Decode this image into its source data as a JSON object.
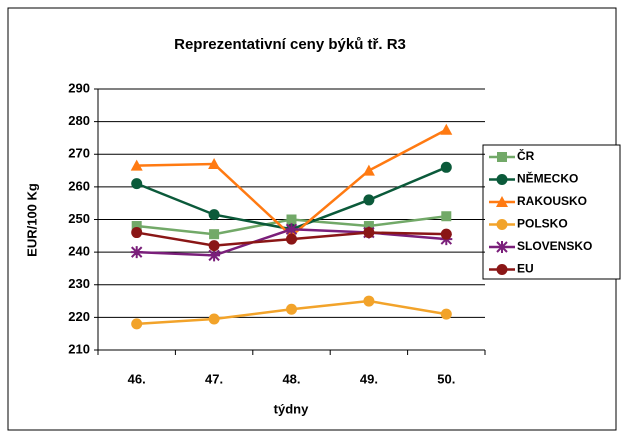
{
  "chart_data": {
    "type": "line",
    "title": "Reprezentativní ceny býků tř. R3",
    "x_label": "týdny",
    "y_label": "EUR/100 Kg",
    "categories": [
      "46.",
      "47.",
      "48.",
      "49.",
      "50."
    ],
    "series": [
      {
        "name": "ČR",
        "color": "#72a968",
        "marker": "square",
        "values": [
          248,
          245.5,
          250,
          248,
          251
        ]
      },
      {
        "name": "NĚMECKO",
        "color": "#0b5a3a",
        "marker": "circle",
        "values": [
          261,
          251.5,
          247,
          256,
          266
        ]
      },
      {
        "name": "RAKOUSKO",
        "color": "#ff7a12",
        "marker": "triangle",
        "values": [
          266.5,
          267,
          245,
          265,
          277.5
        ]
      },
      {
        "name": "POLSKO",
        "color": "#f2a32a",
        "marker": "circle",
        "values": [
          218,
          219.5,
          222.5,
          225,
          221
        ]
      },
      {
        "name": "SLOVENSKO",
        "color": "#7a1f7a",
        "marker": "star",
        "values": [
          240,
          239,
          247,
          246,
          244
        ]
      },
      {
        "name": "EU",
        "color": "#8a1616",
        "marker": "circle",
        "values": [
          246,
          242,
          244,
          246,
          245.5
        ]
      }
    ],
    "ylim": [
      210,
      290
    ],
    "yticks": [
      210,
      220,
      230,
      240,
      250,
      260,
      270,
      280,
      290
    ],
    "grid": true,
    "legend": "right"
  }
}
